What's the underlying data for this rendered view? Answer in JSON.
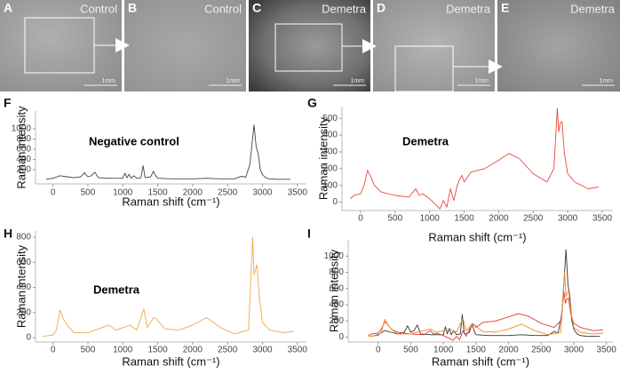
{
  "panels": [
    {
      "letter": "A",
      "label": "Control",
      "scale": "1mm"
    },
    {
      "letter": "B",
      "label": "Control",
      "scale": "1mm"
    },
    {
      "letter": "C",
      "label": "Demetra",
      "scale": "1mm"
    },
    {
      "letter": "D",
      "label": "Demetra",
      "scale": "1mm"
    },
    {
      "letter": "E",
      "label": "Demetra",
      "scale": "1mm"
    }
  ],
  "chart_data": [
    {
      "type": "line",
      "letter": "F",
      "annotation": "Negative control",
      "y_label": "Raman intensity",
      "x_label": "Raman shift (cm⁻¹)",
      "x": [
        -100,
        0,
        100,
        200,
        300,
        400,
        450,
        500,
        550,
        600,
        650,
        800,
        1000,
        1030,
        1060,
        1090,
        1120,
        1160,
        1200,
        1260,
        1290,
        1320,
        1400,
        1440,
        1470,
        1500,
        1700,
        2000,
        2200,
        2400,
        2600,
        2700,
        2760,
        2820,
        2850,
        2880,
        2910,
        2940,
        2970,
        3000,
        3050,
        3100,
        3200,
        3300,
        3400
      ],
      "series": [
        {
          "color": "#444444",
          "values": [
            10,
            30,
            80,
            60,
            40,
            60,
            140,
            60,
            80,
            150,
            40,
            30,
            30,
            130,
            40,
            110,
            30,
            80,
            30,
            40,
            280,
            40,
            60,
            170,
            80,
            30,
            20,
            20,
            30,
            20,
            20,
            70,
            50,
            300,
            700,
            1080,
            650,
            500,
            200,
            100,
            40,
            20,
            10,
            10,
            10
          ]
        }
      ],
      "xlim": [
        -250,
        3630
      ],
      "ylim": [
        -80,
        1350
      ],
      "xticks": [
        0,
        500,
        1000,
        1500,
        2000,
        2500,
        3000,
        3500
      ],
      "yticks": [
        200,
        400,
        600,
        800,
        1000
      ]
    },
    {
      "type": "line",
      "letter": "G",
      "annotation": "Demetra",
      "y_label": "Raman intensity",
      "x_label": "Raman shift (cm⁻¹)",
      "x": [
        -150,
        -100,
        0,
        50,
        100,
        150,
        200,
        300,
        500,
        700,
        800,
        850,
        900,
        1000,
        1100,
        1150,
        1200,
        1250,
        1300,
        1350,
        1400,
        1440,
        1470,
        1500,
        1600,
        1800,
        2000,
        2150,
        2300,
        2500,
        2700,
        2800,
        2850,
        2870,
        2890,
        2920,
        2950,
        3000,
        3100,
        3300,
        3450
      ],
      "series": [
        {
          "color": "#e8473d",
          "values": [
            20,
            40,
            50,
            100,
            190,
            150,
            100,
            60,
            40,
            30,
            80,
            40,
            50,
            20,
            -20,
            -40,
            10,
            -30,
            80,
            10,
            100,
            140,
            160,
            120,
            180,
            200,
            250,
            290,
            260,
            170,
            120,
            200,
            560,
            420,
            470,
            480,
            300,
            170,
            120,
            80,
            90
          ]
        }
      ],
      "xlim": [
        -270,
        3655
      ],
      "ylim": [
        -50,
        570
      ],
      "xticks": [
        0,
        500,
        1000,
        1500,
        2000,
        2500,
        3000,
        3500
      ],
      "yticks": [
        0,
        100,
        200,
        300,
        400,
        500
      ]
    },
    {
      "type": "line",
      "letter": "H",
      "annotation": "Demetra",
      "y_label": "Raman intensity",
      "x_label": "Raman shift (cm⁻¹)",
      "x": [
        -150,
        0,
        50,
        100,
        150,
        200,
        300,
        500,
        700,
        800,
        900,
        1000,
        1100,
        1200,
        1300,
        1350,
        1440,
        1480,
        1600,
        1800,
        2000,
        2200,
        2400,
        2600,
        2800,
        2860,
        2880,
        2920,
        2960,
        3000,
        3100,
        3300,
        3450
      ],
      "series": [
        {
          "color": "#f5a64a",
          "values": [
            10,
            20,
            60,
            220,
            150,
            100,
            40,
            40,
            80,
            100,
            60,
            80,
            100,
            60,
            230,
            80,
            160,
            150,
            70,
            60,
            100,
            160,
            80,
            30,
            60,
            800,
            500,
            580,
            300,
            120,
            60,
            40,
            50
          ]
        }
      ],
      "xlim": [
        -250,
        3630
      ],
      "ylim": [
        -35,
        850
      ],
      "xticks": [
        0,
        500,
        1000,
        1500,
        2000,
        2500,
        3000,
        3500
      ],
      "yticks": [
        0,
        200,
        400,
        600,
        800
      ]
    },
    {
      "type": "line",
      "letter": "I",
      "y_label": "Raman intensity",
      "x_label": "Raman shift (cm⁻¹)",
      "series": [
        {
          "color": "#333333",
          "x": [
            -100,
            0,
            100,
            200,
            300,
            400,
            450,
            500,
            550,
            600,
            650,
            800,
            1000,
            1030,
            1060,
            1090,
            1120,
            1160,
            1200,
            1260,
            1290,
            1320,
            1400,
            1440,
            1470,
            1500,
            1700,
            2000,
            2200,
            2400,
            2600,
            2700,
            2760,
            2820,
            2850,
            2880,
            2910,
            2940,
            2970,
            3000,
            3050,
            3100,
            3200,
            3300,
            3400
          ],
          "values": [
            10,
            30,
            80,
            60,
            40,
            60,
            140,
            60,
            80,
            150,
            40,
            30,
            30,
            130,
            40,
            110,
            30,
            80,
            30,
            40,
            280,
            40,
            60,
            170,
            80,
            30,
            20,
            20,
            30,
            20,
            20,
            70,
            50,
            300,
            700,
            1080,
            650,
            500,
            200,
            100,
            40,
            20,
            10,
            10,
            10
          ]
        },
        {
          "color": "#e0392f",
          "x": [
            -150,
            -100,
            0,
            50,
            100,
            150,
            200,
            300,
            500,
            700,
            800,
            850,
            900,
            1000,
            1100,
            1150,
            1200,
            1250,
            1300,
            1350,
            1400,
            1440,
            1470,
            1500,
            1600,
            1800,
            2000,
            2150,
            2300,
            2500,
            2700,
            2800,
            2850,
            2870,
            2890,
            2920,
            2950,
            3000,
            3100,
            3300,
            3450
          ],
          "values": [
            20,
            40,
            50,
            100,
            190,
            150,
            100,
            60,
            40,
            30,
            80,
            40,
            50,
            20,
            -20,
            -40,
            10,
            -30,
            80,
            10,
            100,
            140,
            160,
            120,
            180,
            200,
            250,
            290,
            260,
            170,
            120,
            200,
            560,
            420,
            470,
            480,
            300,
            170,
            120,
            80,
            90
          ]
        },
        {
          "color": "#f08a2c",
          "x": [
            -150,
            0,
            50,
            100,
            150,
            200,
            300,
            500,
            700,
            800,
            900,
            1000,
            1100,
            1200,
            1300,
            1350,
            1440,
            1480,
            1600,
            1800,
            2000,
            2200,
            2400,
            2600,
            2800,
            2860,
            2880,
            2920,
            2960,
            3000,
            3100,
            3300,
            3450
          ],
          "values": [
            10,
            20,
            60,
            220,
            150,
            100,
            40,
            40,
            80,
            100,
            60,
            80,
            100,
            60,
            230,
            80,
            160,
            150,
            70,
            60,
            100,
            160,
            80,
            30,
            60,
            800,
            500,
            580,
            300,
            120,
            60,
            40,
            50
          ]
        }
      ],
      "xlim": [
        -460,
        3600
      ],
      "ylim": [
        -60,
        1200
      ],
      "xticks": [
        0,
        500,
        1000,
        1500,
        2000,
        2500,
        3000,
        3500
      ],
      "yticks": [
        0,
        200,
        400,
        600,
        800,
        1000
      ]
    }
  ]
}
